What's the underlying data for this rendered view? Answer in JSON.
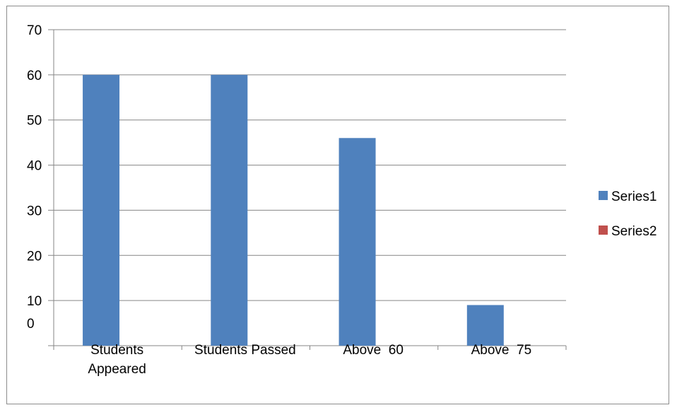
{
  "chart_data": {
    "type": "bar",
    "categories": [
      "Students Appeared",
      "Students Passed",
      "Above  60",
      "Above  75"
    ],
    "category_label_lines": [
      [
        "Students",
        "Appeared"
      ],
      [
        "Students Passed"
      ],
      [
        "Above  60"
      ],
      [
        "Above  75"
      ]
    ],
    "series": [
      {
        "name": "Series1",
        "values": [
          60,
          60,
          46,
          9
        ],
        "color": "#4f81bd"
      },
      {
        "name": "Series2",
        "values": [
          0,
          0,
          0,
          0
        ],
        "color": "#c0504d"
      }
    ],
    "ylim": [
      0,
      70
    ],
    "yticks": [
      {
        "value": 70,
        "label": "70"
      },
      {
        "value": 60,
        "label": "60"
      },
      {
        "value": 50,
        "label": "50"
      },
      {
        "value": 40,
        "label": "40"
      },
      {
        "value": 30,
        "label": "30"
      },
      {
        "value": 20,
        "label": "20"
      },
      {
        "value": 10,
        "label": "10"
      },
      {
        "value": 0,
        "label": "0"
      }
    ],
    "grid": true,
    "legend_position": "right",
    "title": "",
    "xlabel": "",
    "ylabel": ""
  }
}
